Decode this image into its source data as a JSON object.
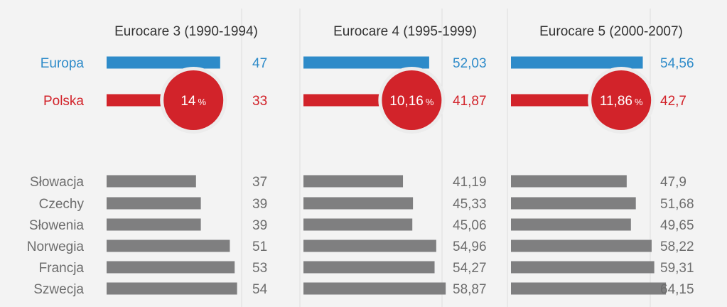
{
  "colors": {
    "europe": "#2e8bc9",
    "poland": "#d2232a",
    "country": "#7f7f80",
    "label_country": "#6d6d6d",
    "value_country": "#6d6d6d",
    "divider": "#dddddd",
    "circle_ring": "#ececec"
  },
  "chart_data": {
    "type": "bar",
    "categories": [
      "Europa",
      "Polska",
      "Słowacja",
      "Czechy",
      "Słowenia",
      "Norwegia",
      "Francja",
      "Szwecja"
    ],
    "series": [
      {
        "name": "Eurocare 3 (1990-1994)",
        "values": [
          "47",
          "33",
          "37",
          "39",
          "39",
          "51",
          "53",
          "54"
        ],
        "difference": "14",
        "difference_unit": "%"
      },
      {
        "name": "Eurocare 4 (1995-1999)",
        "values": [
          "52,03",
          "41,87",
          "41,19",
          "45,33",
          "45,06",
          "54,96",
          "54,27",
          "58,87"
        ],
        "difference": "10,16",
        "difference_unit": "%"
      },
      {
        "name": "Eurocare 5 (2000-2007)",
        "values": [
          "54,56",
          "42,7",
          "47,9",
          "51,68",
          "49,65",
          "58,22",
          "59,31",
          "64,15"
        ],
        "difference": "11,86",
        "difference_unit": "%"
      }
    ]
  }
}
